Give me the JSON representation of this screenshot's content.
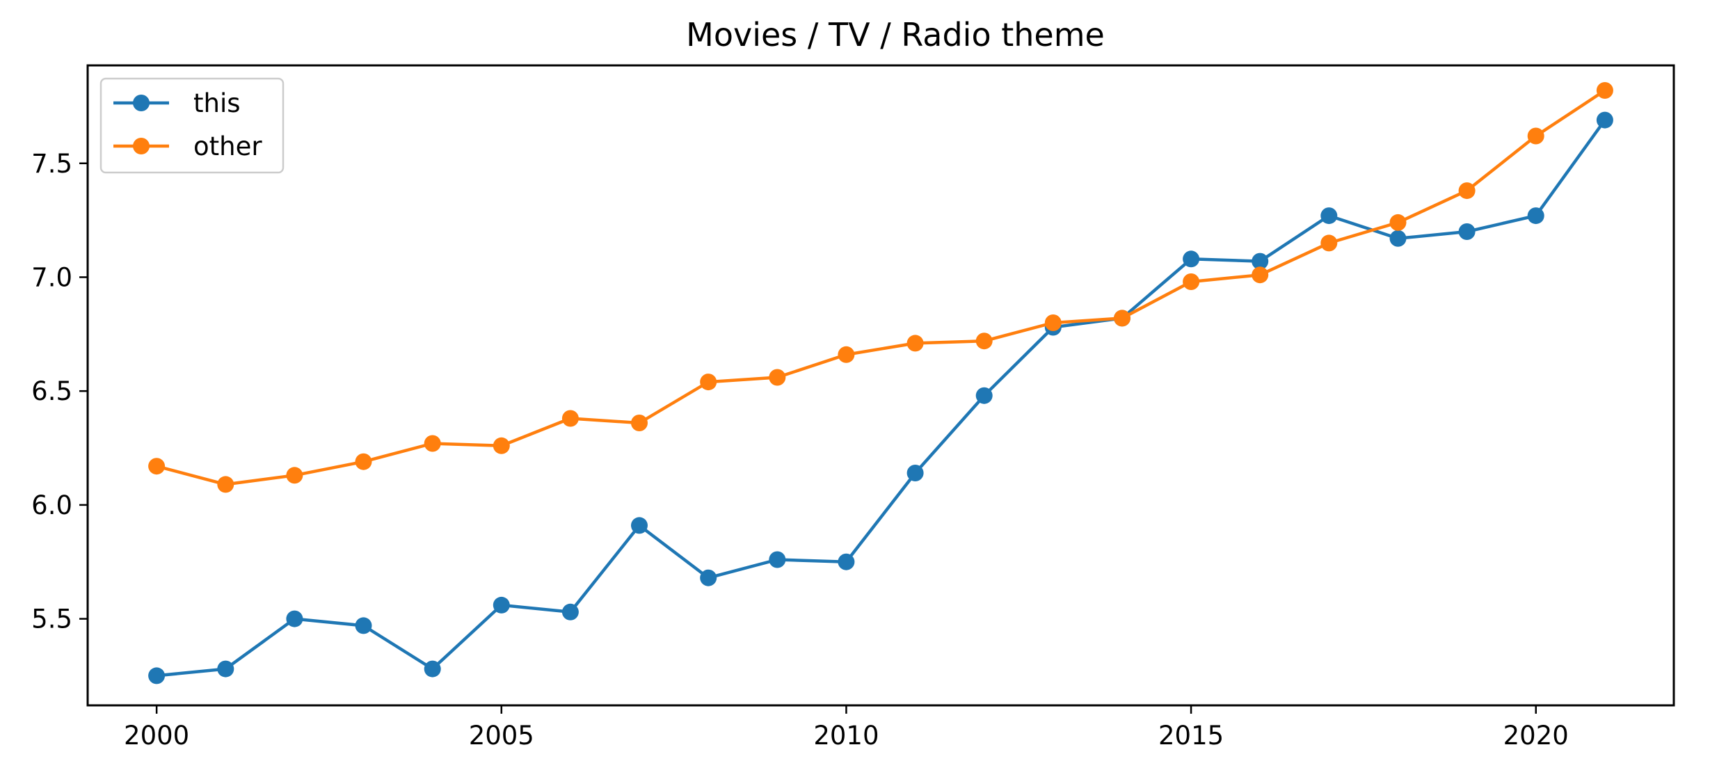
{
  "chart_data": {
    "type": "line",
    "title": "Movies / TV / Radio theme",
    "xlabel": "",
    "ylabel": "",
    "x": [
      2000,
      2001,
      2002,
      2003,
      2004,
      2005,
      2006,
      2007,
      2008,
      2009,
      2010,
      2011,
      2012,
      2013,
      2014,
      2015,
      2016,
      2017,
      2018,
      2019,
      2020,
      2021
    ],
    "series": [
      {
        "name": "this",
        "color": "#1f77b4",
        "values": [
          5.25,
          5.28,
          5.5,
          5.47,
          5.28,
          5.56,
          5.53,
          5.91,
          5.68,
          5.76,
          5.75,
          6.14,
          6.48,
          6.78,
          6.82,
          7.08,
          7.07,
          7.27,
          7.17,
          7.2,
          7.27,
          7.69
        ]
      },
      {
        "name": "other",
        "color": "#ff7f0e",
        "values": [
          6.17,
          6.09,
          6.13,
          6.19,
          6.27,
          6.26,
          6.38,
          6.36,
          6.54,
          6.56,
          6.66,
          6.71,
          6.72,
          6.8,
          6.82,
          6.98,
          7.01,
          7.15,
          7.24,
          7.38,
          7.62,
          7.82
        ]
      }
    ],
    "xlim": [
      1999,
      2022
    ],
    "ylim": [
      5.12,
      7.93
    ],
    "xticks": [
      2000,
      2005,
      2010,
      2015,
      2020
    ],
    "xtick_labels": [
      "2000",
      "2005",
      "2010",
      "2015",
      "2020"
    ],
    "yticks": [
      5.5,
      6.0,
      6.5,
      7.0,
      7.5
    ],
    "ytick_labels": [
      "5.5",
      "6.0",
      "6.5",
      "7.0",
      "7.5"
    ],
    "grid": false,
    "legend_position": "top-left"
  }
}
